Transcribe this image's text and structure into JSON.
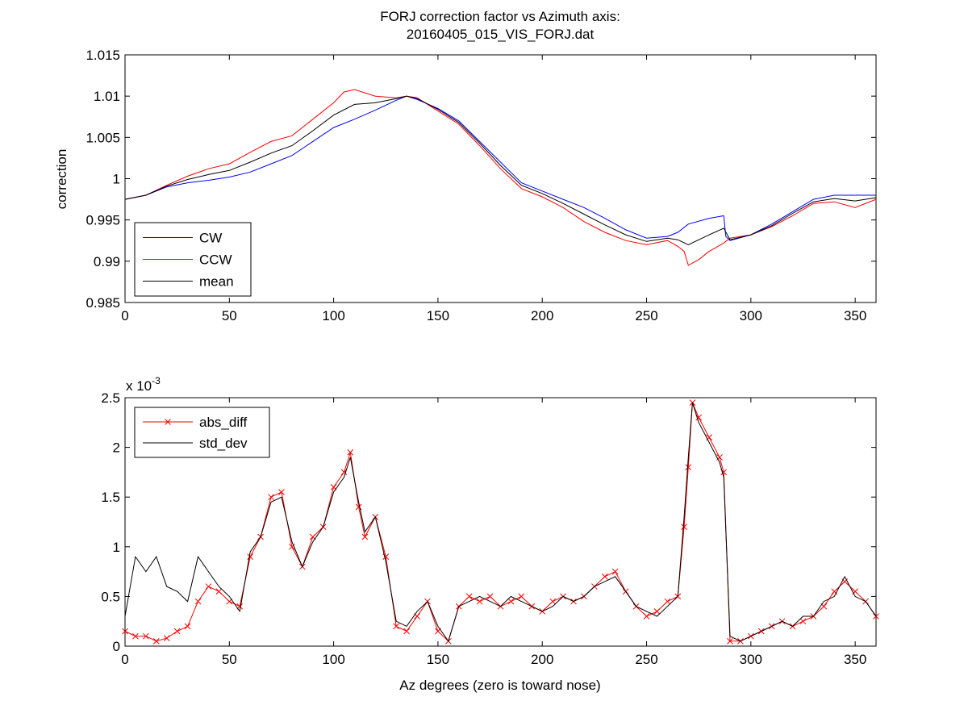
{
  "figure": {
    "title_line1": "FORJ correction factor vs Azimuth axis:",
    "title_line2": "20160405_015_VIS_FORJ.dat"
  },
  "chart_data": [
    {
      "type": "line",
      "ylabel": "correction",
      "xlim": [
        0,
        360
      ],
      "ylim": [
        0.985,
        1.015
      ],
      "x_ticks": [
        0,
        50,
        100,
        150,
        200,
        250,
        300,
        350
      ],
      "x_tick_labels": [
        "0",
        "50",
        "100",
        "150",
        "200",
        "250",
        "300",
        "350"
      ],
      "y_ticks": [
        0.985,
        0.99,
        0.995,
        1.0,
        1.005,
        1.01,
        1.015
      ],
      "y_tick_labels": [
        "0.985",
        "0.99",
        "0.995",
        "1",
        "1.005",
        "1.01",
        "1.015"
      ],
      "legend_position": "bottom-left",
      "series": [
        {
          "name": "CW",
          "color": "#0000ff",
          "x": [
            0,
            10,
            20,
            30,
            40,
            50,
            60,
            70,
            80,
            90,
            100,
            110,
            120,
            130,
            135,
            140,
            150,
            160,
            170,
            180,
            190,
            200,
            210,
            220,
            230,
            240,
            250,
            260,
            265,
            270,
            280,
            287,
            288,
            290,
            300,
            310,
            320,
            330,
            340,
            350,
            360
          ],
          "y": [
            0.9975,
            0.998,
            0.999,
            0.9995,
            0.9998,
            1.0002,
            1.0008,
            1.0018,
            1.0028,
            1.0045,
            1.0062,
            1.0072,
            1.0083,
            1.0095,
            1.01,
            1.0096,
            1.0085,
            1.007,
            1.0045,
            1.002,
            0.9995,
            0.9985,
            0.9975,
            0.9965,
            0.9952,
            0.9938,
            0.9928,
            0.993,
            0.9935,
            0.9945,
            0.9952,
            0.9955,
            0.993,
            0.9925,
            0.9932,
            0.9945,
            0.996,
            0.9975,
            0.998,
            0.998,
            0.998
          ]
        },
        {
          "name": "CCW",
          "color": "#ff0000",
          "x": [
            0,
            10,
            20,
            30,
            40,
            50,
            60,
            70,
            80,
            90,
            100,
            105,
            110,
            120,
            130,
            135,
            140,
            150,
            160,
            170,
            180,
            190,
            200,
            210,
            220,
            230,
            240,
            250,
            260,
            265,
            268,
            270,
            275,
            280,
            287,
            290,
            300,
            310,
            320,
            330,
            340,
            350,
            360
          ],
          "y": [
            0.9975,
            0.998,
            0.9992,
            1.0003,
            1.0012,
            1.0018,
            1.0032,
            1.0045,
            1.0052,
            1.0072,
            1.0092,
            1.0105,
            1.0108,
            1.01,
            1.0098,
            1.01,
            1.0098,
            1.0082,
            1.0066,
            1.004,
            1.0012,
            0.9988,
            0.9978,
            0.9965,
            0.9948,
            0.9935,
            0.9925,
            0.992,
            0.9925,
            0.9918,
            0.9912,
            0.9895,
            0.9902,
            0.9912,
            0.9922,
            0.9928,
            0.9932,
            0.9942,
            0.9955,
            0.997,
            0.9972,
            0.9965,
            0.9975
          ]
        },
        {
          "name": "mean",
          "color": "#000000",
          "x": [
            0,
            10,
            20,
            30,
            40,
            50,
            60,
            70,
            80,
            90,
            100,
            110,
            120,
            130,
            135,
            140,
            150,
            160,
            170,
            180,
            190,
            200,
            210,
            220,
            230,
            240,
            250,
            260,
            265,
            270,
            280,
            287,
            290,
            300,
            310,
            320,
            330,
            340,
            350,
            360
          ],
          "y": [
            0.9975,
            0.998,
            0.9991,
            0.9999,
            1.0005,
            1.001,
            1.002,
            1.0031,
            1.004,
            1.0058,
            1.0077,
            1.009,
            1.0092,
            1.0097,
            1.01,
            1.0097,
            1.0084,
            1.0068,
            1.0043,
            1.0016,
            0.9992,
            0.9982,
            0.997,
            0.9957,
            0.9944,
            0.9932,
            0.9924,
            0.9928,
            0.9926,
            0.992,
            0.9932,
            0.994,
            0.9926,
            0.9932,
            0.9943,
            0.9958,
            0.9972,
            0.9976,
            0.9973,
            0.9977
          ]
        }
      ]
    },
    {
      "type": "line",
      "xlabel": "Az degrees (zero is toward nose)",
      "y_multiplier_base": "x 10",
      "y_multiplier_exponent": "-3",
      "xlim": [
        0,
        360
      ],
      "ylim": [
        0,
        2.5
      ],
      "x_ticks": [
        0,
        50,
        100,
        150,
        200,
        250,
        300,
        350
      ],
      "x_tick_labels": [
        "0",
        "50",
        "100",
        "150",
        "200",
        "250",
        "300",
        "350"
      ],
      "y_ticks": [
        0,
        0.5,
        1,
        1.5,
        2,
        2.5
      ],
      "y_tick_labels": [
        "0",
        "0.5",
        "1",
        "1.5",
        "2",
        "2.5"
      ],
      "legend_position": "top-left",
      "series": [
        {
          "name": "abs_diff",
          "color": "#ff0000",
          "marker": "x",
          "x": [
            0,
            5,
            10,
            15,
            20,
            25,
            30,
            35,
            40,
            45,
            50,
            55,
            60,
            65,
            70,
            75,
            80,
            85,
            90,
            95,
            100,
            105,
            108,
            112,
            115,
            120,
            125,
            130,
            135,
            140,
            145,
            150,
            155,
            160,
            165,
            170,
            175,
            180,
            185,
            190,
            195,
            200,
            205,
            210,
            215,
            220,
            225,
            230,
            235,
            240,
            245,
            250,
            255,
            260,
            265,
            268,
            270,
            272,
            275,
            280,
            285,
            287,
            290,
            295,
            300,
            305,
            310,
            315,
            320,
            325,
            330,
            335,
            340,
            345,
            350,
            355,
            360
          ],
          "y": [
            0.15,
            0.1,
            0.1,
            0.05,
            0.08,
            0.15,
            0.2,
            0.45,
            0.6,
            0.55,
            0.45,
            0.4,
            0.9,
            1.1,
            1.5,
            1.55,
            1.0,
            0.8,
            1.1,
            1.2,
            1.6,
            1.75,
            1.95,
            1.4,
            1.1,
            1.3,
            0.9,
            0.2,
            0.15,
            0.3,
            0.45,
            0.15,
            0.05,
            0.4,
            0.5,
            0.45,
            0.5,
            0.4,
            0.45,
            0.5,
            0.4,
            0.35,
            0.45,
            0.5,
            0.45,
            0.5,
            0.6,
            0.7,
            0.75,
            0.55,
            0.4,
            0.3,
            0.35,
            0.45,
            0.5,
            1.2,
            1.8,
            2.45,
            2.3,
            2.1,
            1.9,
            1.75,
            0.05,
            0.05,
            0.1,
            0.15,
            0.2,
            0.25,
            0.2,
            0.25,
            0.3,
            0.4,
            0.55,
            0.65,
            0.55,
            0.45,
            0.3
          ]
        },
        {
          "name": "std_dev",
          "color": "#000000",
          "x": [
            0,
            5,
            10,
            15,
            20,
            25,
            30,
            35,
            40,
            45,
            50,
            55,
            60,
            65,
            70,
            75,
            80,
            85,
            90,
            95,
            100,
            105,
            108,
            112,
            115,
            120,
            125,
            130,
            135,
            140,
            145,
            150,
            155,
            160,
            165,
            170,
            175,
            180,
            185,
            190,
            195,
            200,
            205,
            210,
            215,
            220,
            225,
            230,
            235,
            240,
            245,
            250,
            255,
            260,
            265,
            268,
            270,
            272,
            275,
            280,
            285,
            287,
            290,
            295,
            300,
            305,
            310,
            315,
            320,
            325,
            330,
            335,
            340,
            345,
            350,
            355,
            360
          ],
          "y": [
            0.3,
            0.9,
            0.75,
            0.9,
            0.6,
            0.55,
            0.45,
            0.9,
            0.75,
            0.6,
            0.5,
            0.35,
            0.95,
            1.1,
            1.45,
            1.5,
            1.05,
            0.8,
            1.05,
            1.2,
            1.55,
            1.7,
            1.9,
            1.45,
            1.15,
            1.3,
            0.85,
            0.25,
            0.2,
            0.35,
            0.45,
            0.2,
            0.05,
            0.4,
            0.45,
            0.5,
            0.45,
            0.4,
            0.5,
            0.45,
            0.4,
            0.35,
            0.4,
            0.5,
            0.45,
            0.5,
            0.6,
            0.65,
            0.7,
            0.55,
            0.4,
            0.35,
            0.3,
            0.4,
            0.5,
            1.3,
            1.9,
            2.45,
            2.25,
            2.05,
            1.85,
            1.7,
            0.1,
            0.05,
            0.1,
            0.15,
            0.2,
            0.25,
            0.2,
            0.3,
            0.3,
            0.45,
            0.5,
            0.7,
            0.5,
            0.45,
            0.3
          ]
        }
      ]
    }
  ]
}
